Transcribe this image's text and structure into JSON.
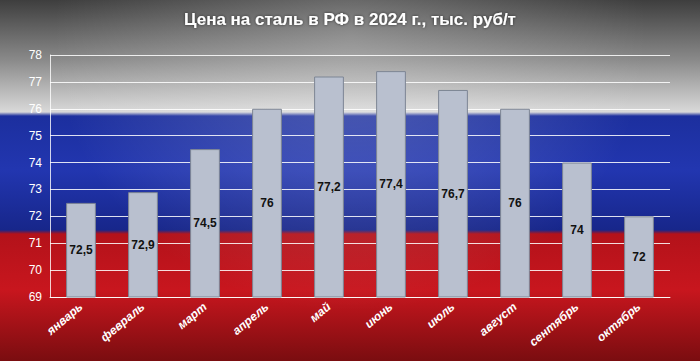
{
  "chart_data": {
    "type": "bar",
    "title": "Цена на сталь в РФ в 2024 г., тыс. руб/т",
    "categories": [
      "январь",
      "февраль",
      "март",
      "апрель",
      "май",
      "июнь",
      "июль",
      "август",
      "сентябрь",
      "октябрь"
    ],
    "values": [
      72.5,
      72.9,
      74.5,
      76,
      77.2,
      77.4,
      76.7,
      76,
      74,
      72
    ],
    "value_labels": [
      "72,5",
      "72,9",
      "74,5",
      "76",
      "77,2",
      "77,4",
      "76,7",
      "76",
      "74",
      "72"
    ],
    "color": "#b9c0cf",
    "ylim": [
      69,
      78
    ],
    "yticks": [
      69,
      70,
      71,
      72,
      73,
      74,
      75,
      76,
      77,
      78
    ],
    "grid": true,
    "data_labels": true
  }
}
